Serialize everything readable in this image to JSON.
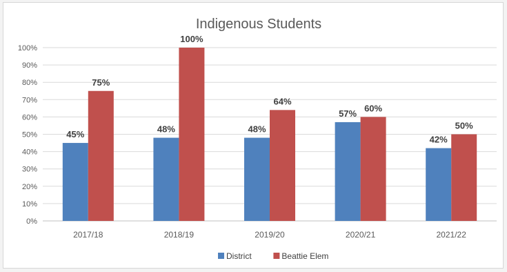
{
  "chart_data": {
    "type": "bar",
    "title": "Indigenous Students",
    "categories": [
      "2017/18",
      "2018/19",
      "2019/20",
      "2020/21",
      "2021/22"
    ],
    "series": [
      {
        "name": "District",
        "color": "#4f81bd",
        "values": [
          45,
          48,
          48,
          57,
          42
        ],
        "labels": [
          "45%",
          "48%",
          "48%",
          "57%",
          "42%"
        ]
      },
      {
        "name": "Beattie Elem",
        "color": "#c0504d",
        "values": [
          75,
          100,
          64,
          60,
          50
        ],
        "labels": [
          "75%",
          "100%",
          "64%",
          "60%",
          "50%"
        ]
      }
    ],
    "y_ticks": [
      "0%",
      "10%",
      "20%",
      "30%",
      "40%",
      "50%",
      "60%",
      "70%",
      "80%",
      "90%",
      "100%"
    ],
    "ylim": [
      0,
      100
    ],
    "grid": true,
    "legend_position": "bottom"
  }
}
